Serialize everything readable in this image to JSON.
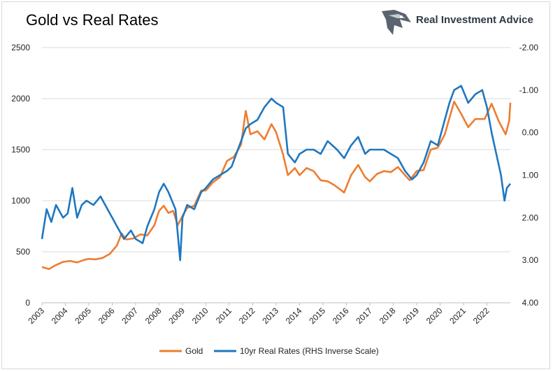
{
  "brand": {
    "name": "Real Investment Advice"
  },
  "chart_data": {
    "type": "line",
    "title": "Gold vs Real Rates",
    "left_axis": {
      "min": 0,
      "max": 2500,
      "ticks": [
        "2500",
        "2000",
        "1500",
        "1000",
        "500",
        "0"
      ],
      "tick_values": [
        2500,
        2000,
        1500,
        1000,
        500,
        0
      ]
    },
    "right_axis": {
      "min": -2.0,
      "max": 4.0,
      "inverted": true,
      "ticks": [
        "-2.00",
        "-1.00",
        "0.00",
        "1.00",
        "2.00",
        "3.00",
        "4.00"
      ],
      "tick_values": [
        -2,
        -1,
        0,
        1,
        2,
        3,
        4
      ]
    },
    "x_axis": {
      "min": 2003,
      "max": 2023,
      "ticks": [
        "2003",
        "2004",
        "2005",
        "2006",
        "2007",
        "2008",
        "2009",
        "2010",
        "2011",
        "2012",
        "2013",
        "2014",
        "2015",
        "2016",
        "2017",
        "2018",
        "2019",
        "2020",
        "2021",
        "2022"
      ]
    },
    "grid": true,
    "legend_position": "bottom",
    "series": [
      {
        "name": "Gold",
        "axis": "left",
        "color": "#ed7d31",
        "points": [
          [
            2003.0,
            350
          ],
          [
            2003.3,
            330
          ],
          [
            2003.6,
            370
          ],
          [
            2003.9,
            400
          ],
          [
            2004.2,
            410
          ],
          [
            2004.5,
            395
          ],
          [
            2004.8,
            420
          ],
          [
            2005.0,
            430
          ],
          [
            2005.3,
            425
          ],
          [
            2005.6,
            440
          ],
          [
            2005.9,
            480
          ],
          [
            2006.2,
            560
          ],
          [
            2006.4,
            680
          ],
          [
            2006.6,
            620
          ],
          [
            2006.9,
            630
          ],
          [
            2007.2,
            670
          ],
          [
            2007.5,
            660
          ],
          [
            2007.8,
            760
          ],
          [
            2008.0,
            900
          ],
          [
            2008.2,
            950
          ],
          [
            2008.4,
            880
          ],
          [
            2008.6,
            900
          ],
          [
            2008.8,
            760
          ],
          [
            2009.0,
            850
          ],
          [
            2009.2,
            930
          ],
          [
            2009.5,
            950
          ],
          [
            2009.8,
            1100
          ],
          [
            2010.0,
            1100
          ],
          [
            2010.3,
            1180
          ],
          [
            2010.6,
            1230
          ],
          [
            2010.9,
            1390
          ],
          [
            2011.2,
            1430
          ],
          [
            2011.5,
            1550
          ],
          [
            2011.7,
            1880
          ],
          [
            2011.9,
            1650
          ],
          [
            2012.2,
            1680
          ],
          [
            2012.5,
            1600
          ],
          [
            2012.8,
            1750
          ],
          [
            2013.0,
            1670
          ],
          [
            2013.3,
            1450
          ],
          [
            2013.5,
            1250
          ],
          [
            2013.8,
            1320
          ],
          [
            2014.0,
            1250
          ],
          [
            2014.3,
            1320
          ],
          [
            2014.6,
            1290
          ],
          [
            2014.9,
            1200
          ],
          [
            2015.2,
            1190
          ],
          [
            2015.5,
            1150
          ],
          [
            2015.9,
            1080
          ],
          [
            2016.2,
            1250
          ],
          [
            2016.5,
            1350
          ],
          [
            2016.8,
            1230
          ],
          [
            2017.0,
            1190
          ],
          [
            2017.3,
            1260
          ],
          [
            2017.6,
            1290
          ],
          [
            2017.9,
            1280
          ],
          [
            2018.2,
            1330
          ],
          [
            2018.5,
            1250
          ],
          [
            2018.7,
            1200
          ],
          [
            2019.0,
            1290
          ],
          [
            2019.3,
            1300
          ],
          [
            2019.6,
            1500
          ],
          [
            2019.9,
            1520
          ],
          [
            2020.2,
            1650
          ],
          [
            2020.6,
            1970
          ],
          [
            2020.9,
            1850
          ],
          [
            2021.2,
            1720
          ],
          [
            2021.5,
            1800
          ],
          [
            2021.9,
            1800
          ],
          [
            2022.2,
            1950
          ],
          [
            2022.5,
            1780
          ],
          [
            2022.8,
            1650
          ],
          [
            2022.95,
            1780
          ],
          [
            2023.0,
            1960
          ]
        ]
      },
      {
        "name": "10yr Real Rates (RHS Inverse Scale)",
        "axis": "right",
        "color": "#1f77c0",
        "points": [
          [
            2003.0,
            2.5
          ],
          [
            2003.2,
            1.8
          ],
          [
            2003.4,
            2.1
          ],
          [
            2003.6,
            1.7
          ],
          [
            2003.9,
            2.0
          ],
          [
            2004.1,
            1.9
          ],
          [
            2004.3,
            1.3
          ],
          [
            2004.5,
            2.0
          ],
          [
            2004.7,
            1.7
          ],
          [
            2004.9,
            1.6
          ],
          [
            2005.2,
            1.7
          ],
          [
            2005.5,
            1.5
          ],
          [
            2005.8,
            1.8
          ],
          [
            2006.0,
            2.0
          ],
          [
            2006.2,
            2.2
          ],
          [
            2006.5,
            2.5
          ],
          [
            2006.8,
            2.3
          ],
          [
            2007.0,
            2.5
          ],
          [
            2007.3,
            2.6
          ],
          [
            2007.5,
            2.2
          ],
          [
            2007.8,
            1.8
          ],
          [
            2008.0,
            1.4
          ],
          [
            2008.2,
            1.2
          ],
          [
            2008.4,
            1.4
          ],
          [
            2008.7,
            1.8
          ],
          [
            2008.9,
            3.0
          ],
          [
            2009.0,
            2.0
          ],
          [
            2009.2,
            1.7
          ],
          [
            2009.5,
            1.8
          ],
          [
            2009.8,
            1.4
          ],
          [
            2010.0,
            1.3
          ],
          [
            2010.3,
            1.1
          ],
          [
            2010.6,
            1.0
          ],
          [
            2010.9,
            0.9
          ],
          [
            2011.1,
            0.8
          ],
          [
            2011.3,
            0.5
          ],
          [
            2011.5,
            0.2
          ],
          [
            2011.7,
            -0.1
          ],
          [
            2011.9,
            -0.2
          ],
          [
            2012.2,
            -0.3
          ],
          [
            2012.5,
            -0.6
          ],
          [
            2012.8,
            -0.8
          ],
          [
            2013.0,
            -0.7
          ],
          [
            2013.3,
            -0.6
          ],
          [
            2013.5,
            0.5
          ],
          [
            2013.8,
            0.7
          ],
          [
            2014.0,
            0.5
          ],
          [
            2014.3,
            0.4
          ],
          [
            2014.6,
            0.4
          ],
          [
            2014.9,
            0.5
          ],
          [
            2015.2,
            0.2
          ],
          [
            2015.6,
            0.4
          ],
          [
            2015.9,
            0.6
          ],
          [
            2016.2,
            0.3
          ],
          [
            2016.5,
            0.1
          ],
          [
            2016.8,
            0.5
          ],
          [
            2017.0,
            0.4
          ],
          [
            2017.3,
            0.4
          ],
          [
            2017.6,
            0.4
          ],
          [
            2017.9,
            0.5
          ],
          [
            2018.2,
            0.6
          ],
          [
            2018.5,
            0.9
          ],
          [
            2018.8,
            1.1
          ],
          [
            2019.0,
            1.0
          ],
          [
            2019.3,
            0.7
          ],
          [
            2019.6,
            0.2
          ],
          [
            2019.9,
            0.3
          ],
          [
            2020.2,
            -0.3
          ],
          [
            2020.4,
            -0.7
          ],
          [
            2020.6,
            -1.0
          ],
          [
            2020.9,
            -1.1
          ],
          [
            2021.2,
            -0.7
          ],
          [
            2021.5,
            -0.9
          ],
          [
            2021.8,
            -1.0
          ],
          [
            2022.0,
            -0.6
          ],
          [
            2022.2,
            0.0
          ],
          [
            2022.4,
            0.5
          ],
          [
            2022.6,
            1.0
          ],
          [
            2022.75,
            1.6
          ],
          [
            2022.85,
            1.3
          ],
          [
            2023.0,
            1.2
          ]
        ]
      }
    ]
  }
}
